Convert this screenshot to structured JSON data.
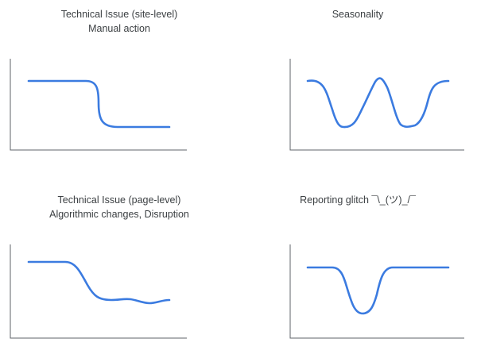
{
  "colors": {
    "line": "#3b7be0",
    "axis": "#5f6368",
    "text": "#3c4043"
  },
  "panels": [
    {
      "title_line1": "Technical Issue (site-level)",
      "title_line2": "Manual action",
      "pattern": "sharp-drop"
    },
    {
      "title_line1": "Seasonality",
      "title_line2": "",
      "pattern": "cyclical-dips"
    },
    {
      "title_line1": "Technical Issue (page-level)",
      "title_line2": "Algorithmic changes, Disruption",
      "pattern": "gradual-decline"
    },
    {
      "title_line1": "Reporting glitch ¯\\_(ツ)_/¯",
      "title_line2": "",
      "pattern": "temporary-dip"
    }
  ]
}
